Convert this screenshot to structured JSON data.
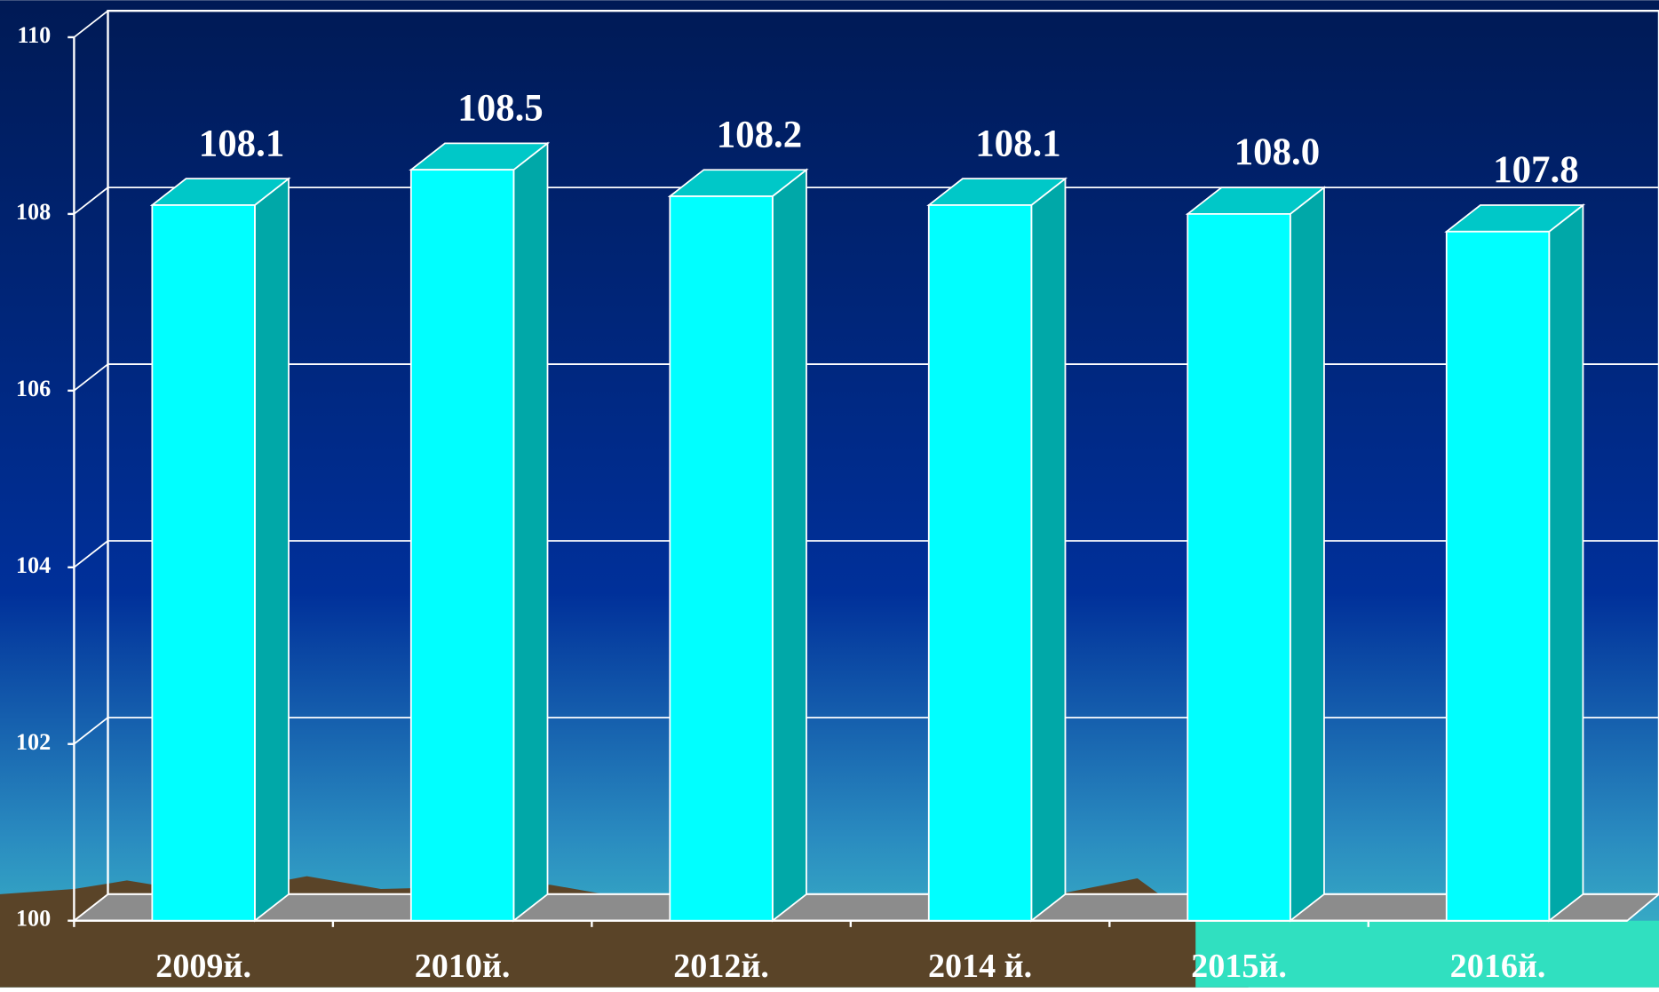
{
  "chart_data": {
    "type": "bar3d",
    "categories": [
      "2009й.",
      "2010й.",
      "2012й.",
      "2014 й.",
      "2015й.",
      "2016й."
    ],
    "values": [
      108.1,
      108.5,
      108.2,
      108.1,
      108.0,
      107.8
    ],
    "value_labels": [
      "108.1",
      "108.5",
      "108.2",
      "108.1",
      "108.0",
      "107.8"
    ],
    "color": "#00ffff",
    "ylim": [
      100,
      110
    ],
    "yticks": [
      100,
      102,
      104,
      106,
      108,
      110
    ],
    "grid": true
  }
}
